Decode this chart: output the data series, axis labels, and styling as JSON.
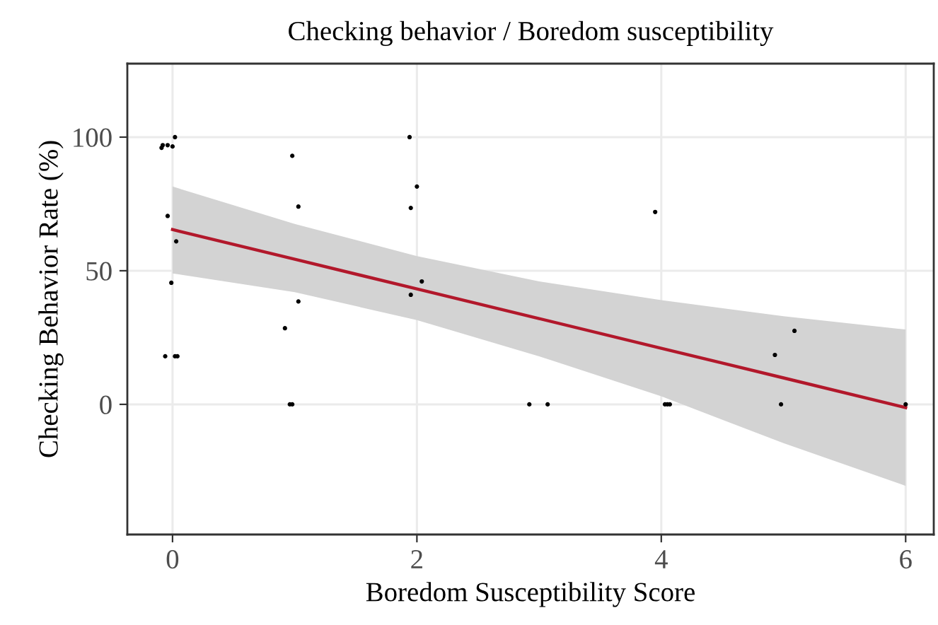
{
  "chart_data": {
    "type": "scatter",
    "title": "Checking behavior / Boredom susceptibility",
    "xlabel": "Boredom Susceptibility Score",
    "ylabel": "Checking Behavior Rate (%)",
    "xlim": [
      -0.37,
      6.23
    ],
    "ylim": [
      -48.7,
      127.5
    ],
    "xticks": [
      0,
      2,
      4,
      6
    ],
    "yticks": [
      0,
      50,
      100
    ],
    "grid": true,
    "series": [
      {
        "color": "#000000",
        "marker": "circle",
        "x": [
          -0.09,
          -0.08,
          -0.04,
          0.0,
          0.02,
          -0.04,
          0.03,
          -0.01,
          -0.06,
          0.02,
          0.04,
          0.98,
          1.03,
          1.03,
          0.92,
          0.96,
          0.98,
          1.94,
          2.0,
          1.95,
          2.04,
          1.95,
          2.92,
          3.07,
          3.95,
          4.03,
          4.05,
          4.07,
          4.93,
          5.09,
          4.98,
          6.0
        ],
        "values": [
          96,
          97,
          97,
          96.5,
          100,
          70.5,
          61,
          45.5,
          18,
          18,
          18,
          93,
          74,
          38.5,
          28.5,
          0,
          0,
          100,
          81.5,
          73.5,
          46,
          41,
          0,
          0,
          72,
          0,
          0,
          0,
          18.5,
          27.5,
          0,
          0
        ]
      },
      {
        "type": "line",
        "color": "#b2182b",
        "marker": "none",
        "line_style": "solid",
        "x": [
          0,
          1,
          2,
          3,
          4,
          5,
          6
        ],
        "values": [
          65.4,
          54.3,
          43.2,
          32.1,
          21.0,
          9.9,
          -1.2
        ],
        "lower": [
          49,
          42,
          31.5,
          18,
          3,
          -14.5,
          -30.5
        ],
        "upper": [
          81.5,
          67.5,
          55.5,
          46,
          39,
          33,
          28
        ]
      }
    ]
  }
}
